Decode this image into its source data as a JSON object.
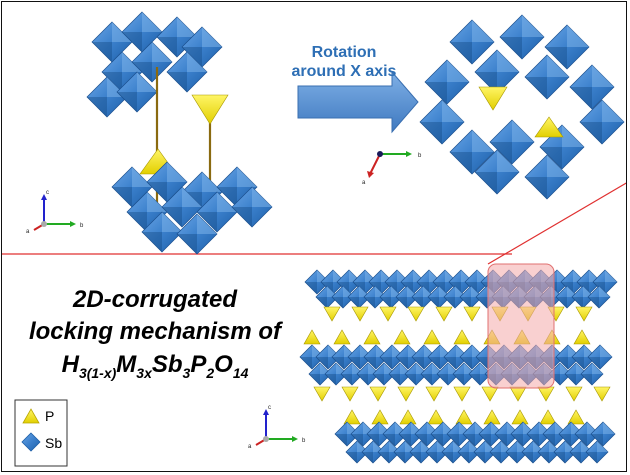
{
  "rotation_arrow": {
    "line1": "Rotation",
    "line2": "around X axis",
    "color": "#5b8fce"
  },
  "caption": {
    "line1": "2D-corrugated",
    "line2": "locking mechanism of",
    "formula": {
      "H": "H",
      "h_sub": "3(1-x)",
      "M": "M",
      "m_sub": "3x",
      "Sb": "Sb",
      "sb_sub": "3",
      "P": "P",
      "p_sub": "2",
      "O": "O",
      "o_sub": "14"
    }
  },
  "legend": {
    "items": [
      {
        "label": "P",
        "color": "#f2e200"
      },
      {
        "label": "Sb",
        "color": "#3b80cc"
      }
    ]
  },
  "axes_triads": [
    {
      "labels": [
        "c",
        "a",
        "b"
      ]
    },
    {
      "labels": [
        "a",
        "b"
      ]
    },
    {
      "labels": [
        "c",
        "a",
        "b"
      ]
    }
  ],
  "colors": {
    "sb_octahedra": "#3b80cc",
    "sb_dark": "#1f5fa6",
    "p_tetrahedra": "#f2e200",
    "divider_line": "#e03030",
    "highlight_box": "#f4a9a9"
  }
}
